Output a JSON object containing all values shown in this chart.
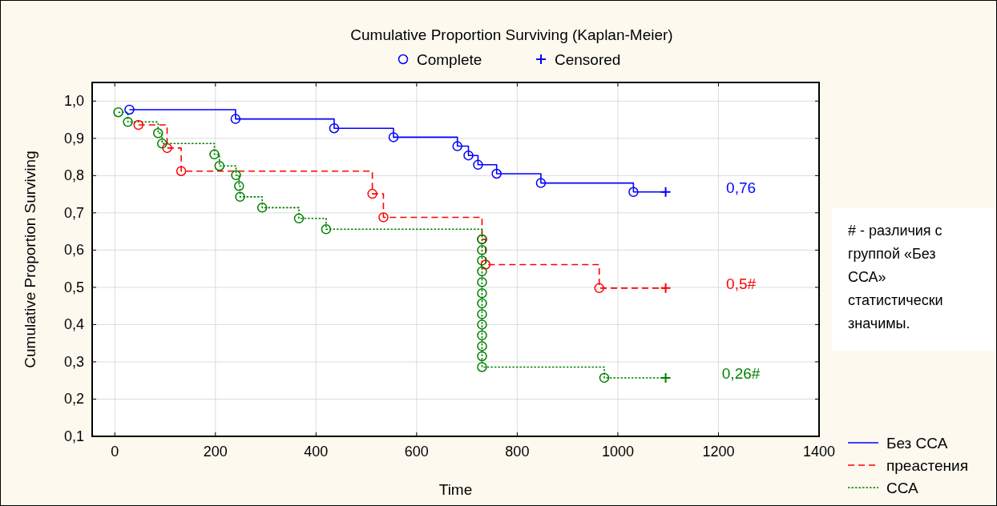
{
  "chart_data": {
    "type": "step",
    "title": "Cumulative Proportion Surviving (Kaplan-Meier)",
    "xlabel": "Time",
    "ylabel": "Cumulative Proportion Surviving",
    "xlim": [
      -45,
      1400
    ],
    "xticks": [
      0,
      200,
      400,
      600,
      800,
      1000,
      1200,
      1400
    ],
    "ylim": [
      0.1,
      1.05
    ],
    "yticks": [
      {
        "value": 0.1,
        "label": "0,1"
      },
      {
        "value": 0.2,
        "label": "0,2"
      },
      {
        "value": 0.3,
        "label": "0,3"
      },
      {
        "value": 0.4,
        "label": "0,4"
      },
      {
        "value": 0.5,
        "label": "0,5"
      },
      {
        "value": 0.6,
        "label": "0,6"
      },
      {
        "value": 0.7,
        "label": "0,7"
      },
      {
        "value": 0.8,
        "label": "0,8"
      },
      {
        "value": 0.9,
        "label": "0,9"
      },
      {
        "value": 1.0,
        "label": "1,0"
      }
    ],
    "grid": true,
    "legend": "bottom right",
    "series": [
      {
        "name": "Без ССА",
        "color": "#0000ff",
        "line_style": "solid",
        "x": [
          29,
          240,
          436,
          554,
          681,
          703,
          722,
          759,
          847,
          1031,
          1095
        ],
        "values": [
          0.977,
          0.952,
          0.927,
          0.903,
          0.879,
          0.854,
          0.829,
          0.805,
          0.78,
          0.756,
          0.756
        ]
      },
      {
        "name": "преастения",
        "color": "#ff0000",
        "line_style": "dashed",
        "x": [
          47,
          104,
          132,
          512,
          534,
          730,
          737,
          963,
          1095
        ],
        "values": [
          0.936,
          0.874,
          0.812,
          0.751,
          0.688,
          0.629,
          0.561,
          0.498,
          0.498
        ]
      },
      {
        "name": "ССА",
        "color": "#008000",
        "line_style": "dotted",
        "x": [
          7,
          26,
          86,
          94,
          198,
          208,
          241,
          247,
          249,
          293,
          366,
          420,
          730,
          730,
          730,
          730,
          730,
          730,
          730,
          730,
          730,
          730,
          730,
          730,
          730,
          973,
          1095
        ],
        "values": [
          0.97,
          0.944,
          0.914,
          0.886,
          0.857,
          0.826,
          0.801,
          0.772,
          0.743,
          0.714,
          0.685,
          0.656,
          0.629,
          0.6,
          0.572,
          0.543,
          0.514,
          0.484,
          0.457,
          0.428,
          0.4,
          0.371,
          0.342,
          0.315,
          0.286,
          0.257,
          0.257
        ]
      },
      {
        "name": "Complete",
        "type": "scatter",
        "marker": "circle",
        "color": "#0000ff",
        "x": [
          29,
          240,
          436,
          554,
          681,
          703,
          722,
          759,
          847,
          1031,
          47,
          104,
          132,
          512,
          534,
          730,
          737,
          963,
          7,
          26,
          86,
          94,
          198,
          208,
          241,
          247,
          249,
          293,
          366,
          420,
          730,
          730,
          730,
          730,
          730,
          730,
          730,
          730,
          730,
          730,
          730,
          730,
          730,
          973
        ],
        "values": [
          0.977,
          0.952,
          0.927,
          0.903,
          0.879,
          0.854,
          0.829,
          0.805,
          0.78,
          0.756,
          0.936,
          0.874,
          0.812,
          0.751,
          0.688,
          0.629,
          0.561,
          0.498,
          0.97,
          0.944,
          0.914,
          0.886,
          0.857,
          0.826,
          0.801,
          0.772,
          0.743,
          0.714,
          0.685,
          0.656,
          0.629,
          0.6,
          0.572,
          0.543,
          0.514,
          0.484,
          0.457,
          0.428,
          0.4,
          0.371,
          0.342,
          0.315,
          0.286,
          0.257
        ],
        "colors": [
          "#0000ff",
          "#0000ff",
          "#0000ff",
          "#0000ff",
          "#0000ff",
          "#0000ff",
          "#0000ff",
          "#0000ff",
          "#0000ff",
          "#0000ff",
          "#ff0000",
          "#ff0000",
          "#ff0000",
          "#ff0000",
          "#ff0000",
          "#ff0000",
          "#ff0000",
          "#ff0000",
          "#008000",
          "#008000",
          "#008000",
          "#008000",
          "#008000",
          "#008000",
          "#008000",
          "#008000",
          "#008000",
          "#008000",
          "#008000",
          "#008000",
          "#008000",
          "#008000",
          "#008000",
          "#008000",
          "#008000",
          "#008000",
          "#008000",
          "#008000",
          "#008000",
          "#008000",
          "#008000",
          "#008000",
          "#008000",
          "#008000"
        ]
      },
      {
        "name": "Censored",
        "type": "scatter",
        "marker": "cross",
        "color": "#0000ff",
        "x": [
          1095,
          1095,
          1095
        ],
        "values": [
          0.756,
          0.498,
          0.257
        ],
        "colors": [
          "#0000ff",
          "#ff0000",
          "#008000"
        ]
      }
    ],
    "annotations": [
      "0,76",
      "0,5#",
      "0,26#",
      "# - различия с группой «Без ССА» статистически значимы."
    ]
  }
}
